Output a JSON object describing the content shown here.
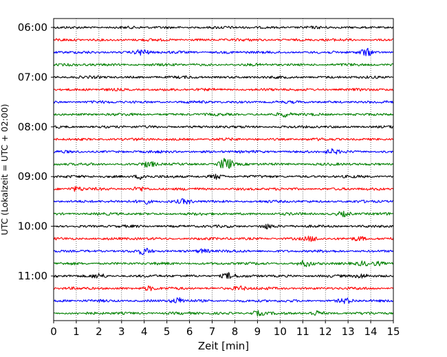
{
  "chart_data": {
    "type": "line",
    "title": "",
    "xlabel": "Zeit  [min]",
    "ylabel": "UTC (Lokalzeit = UTC + 02:00)",
    "xlim": [
      0,
      15
    ],
    "xticks": [
      "0",
      "1",
      "2",
      "3",
      "4",
      "5",
      "6",
      "7",
      "8",
      "9",
      "10",
      "11",
      "12",
      "13",
      "14",
      "15"
    ],
    "grid": "vertical dotted",
    "legend": "none",
    "row_interval_minutes": 15,
    "ytick_labels": [
      {
        "label": "06:00",
        "row": 0
      },
      {
        "label": "07:00",
        "row": 4
      },
      {
        "label": "08:00",
        "row": 8
      },
      {
        "label": "09:00",
        "row": 12
      },
      {
        "label": "10:00",
        "row": 16
      },
      {
        "label": "11:00",
        "row": 20
      }
    ],
    "series": [
      {
        "start_utc": "06:00",
        "color": "#000000",
        "events": []
      },
      {
        "start_utc": "06:15",
        "color": "#ff0000",
        "events": []
      },
      {
        "start_utc": "06:30",
        "color": "#0000ff",
        "events": [
          [
            3.9,
            0.4
          ],
          [
            13.8,
            0.5
          ]
        ]
      },
      {
        "start_utc": "06:45",
        "color": "#008000",
        "events": []
      },
      {
        "start_utc": "07:00",
        "color": "#000000",
        "events": []
      },
      {
        "start_utc": "07:15",
        "color": "#ff0000",
        "events": []
      },
      {
        "start_utc": "07:30",
        "color": "#0000ff",
        "events": []
      },
      {
        "start_utc": "07:45",
        "color": "#008000",
        "events": [
          [
            10.2,
            0.3
          ]
        ]
      },
      {
        "start_utc": "08:00",
        "color": "#000000",
        "events": []
      },
      {
        "start_utc": "08:15",
        "color": "#ff0000",
        "events": []
      },
      {
        "start_utc": "08:30",
        "color": "#0000ff",
        "events": [
          [
            12.3,
            0.3
          ]
        ]
      },
      {
        "start_utc": "08:45",
        "color": "#008000",
        "events": [
          [
            4.2,
            0.4
          ],
          [
            7.6,
            0.9
          ]
        ]
      },
      {
        "start_utc": "09:00",
        "color": "#000000",
        "events": [
          [
            3.9,
            0.4
          ],
          [
            7.2,
            0.3
          ]
        ]
      },
      {
        "start_utc": "09:15",
        "color": "#ff0000",
        "events": [
          [
            1.0,
            0.3
          ],
          [
            3.8,
            0.3
          ]
        ]
      },
      {
        "start_utc": "09:30",
        "color": "#0000ff",
        "events": [
          [
            4.0,
            0.4
          ],
          [
            5.8,
            0.3
          ]
        ]
      },
      {
        "start_utc": "09:45",
        "color": "#008000",
        "events": [
          [
            12.8,
            0.3
          ]
        ]
      },
      {
        "start_utc": "10:00",
        "color": "#000000",
        "events": [
          [
            9.4,
            0.3
          ]
        ]
      },
      {
        "start_utc": "10:15",
        "color": "#ff0000",
        "events": [
          [
            11.4,
            0.3
          ],
          [
            13.5,
            0.3
          ]
        ]
      },
      {
        "start_utc": "10:30",
        "color": "#0000ff",
        "events": [
          [
            4.0,
            0.4
          ],
          [
            6.6,
            0.3
          ]
        ]
      },
      {
        "start_utc": "10:45",
        "color": "#008000",
        "events": [
          [
            11.1,
            0.4
          ],
          [
            13.7,
            0.3
          ],
          [
            14.3,
            0.3
          ]
        ]
      },
      {
        "start_utc": "11:00",
        "color": "#000000",
        "events": [
          [
            2.0,
            0.3
          ],
          [
            7.7,
            0.4
          ],
          [
            13.6,
            0.3
          ]
        ]
      },
      {
        "start_utc": "11:15",
        "color": "#ff0000",
        "events": [
          [
            4.2,
            0.3
          ],
          [
            8.2,
            0.3
          ]
        ]
      },
      {
        "start_utc": "11:30",
        "color": "#0000ff",
        "events": [
          [
            5.5,
            0.4
          ],
          [
            12.9,
            0.3
          ]
        ]
      },
      {
        "start_utc": "11:45",
        "color": "#008000",
        "events": [
          [
            9.0,
            0.3
          ],
          [
            11.6,
            0.3
          ]
        ]
      }
    ]
  }
}
